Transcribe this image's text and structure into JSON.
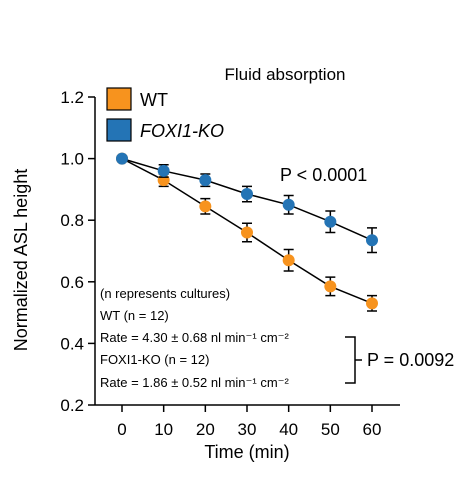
{
  "chart_data": {
    "type": "line",
    "title": "Fluid absorption",
    "xlabel": "Time (min)",
    "ylabel": "Normalized ASL height",
    "x": [
      0,
      10,
      20,
      30,
      40,
      50,
      60
    ],
    "xlim": [
      0,
      60
    ],
    "ylim": [
      0.2,
      1.2
    ],
    "xticks": [
      0,
      10,
      20,
      30,
      40,
      50,
      60
    ],
    "yticks": [
      0.2,
      0.4,
      0.6,
      0.8,
      1.0,
      1.2
    ],
    "ytick_labels": [
      "0.2",
      "0.4",
      "0.6",
      "0.8",
      "1.0",
      "1.2"
    ],
    "grid": false,
    "legend_position": "top-left",
    "series": [
      {
        "name": "WT",
        "color": "#f7931e",
        "values": [
          1.0,
          0.93,
          0.845,
          0.76,
          0.67,
          0.585,
          0.53
        ],
        "errors": [
          0.0,
          0.02,
          0.025,
          0.03,
          0.035,
          0.03,
          0.025
        ]
      },
      {
        "name": "FOXI1-KO",
        "color": "#2474b5",
        "values": [
          1.0,
          0.96,
          0.93,
          0.885,
          0.85,
          0.795,
          0.735
        ],
        "errors": [
          0.0,
          0.02,
          0.02,
          0.025,
          0.03,
          0.035,
          0.04
        ]
      }
    ],
    "annotations": {
      "p_top": "P < 0.0001",
      "note_intro": "(n represents cultures)",
      "wt_n": "WT (n = 12)",
      "wt_rate": "Rate = 4.30 ± 0.68 nl min⁻¹ cm⁻²",
      "ko_n": "FOXI1-KO (n = 12)",
      "ko_rate": "Rate = 1.86 ± 0.52 nl min⁻¹ cm⁻²",
      "p_rate": "P = 0.0092"
    }
  }
}
